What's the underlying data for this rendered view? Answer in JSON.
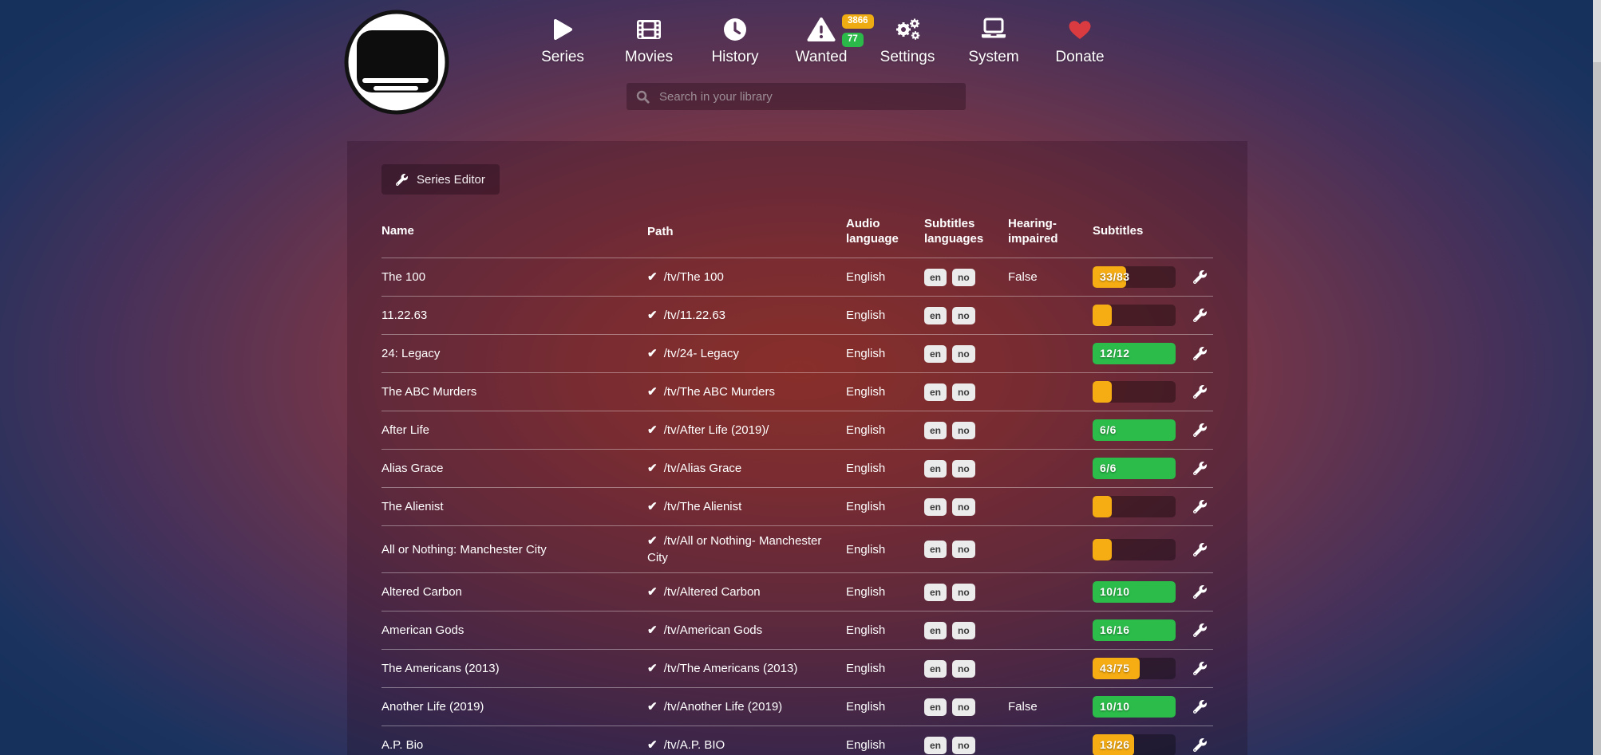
{
  "nav": {
    "items": [
      {
        "label": "Series",
        "icon": "play-icon"
      },
      {
        "label": "Movies",
        "icon": "film-icon"
      },
      {
        "label": "History",
        "icon": "clock-icon"
      },
      {
        "label": "Wanted",
        "icon": "warning-triangle-icon",
        "badges": [
          {
            "value": "3866",
            "color": "yellow"
          },
          {
            "value": "77",
            "color": "green"
          }
        ]
      },
      {
        "label": "Settings",
        "icon": "gears-icon"
      },
      {
        "label": "System",
        "icon": "laptop-icon"
      },
      {
        "label": "Donate",
        "icon": "heart-icon"
      }
    ]
  },
  "search": {
    "placeholder": "Search in your library",
    "value": ""
  },
  "toolbar": {
    "series_editor_label": "Series Editor",
    "series_editor_icon": "wrench-icon"
  },
  "table": {
    "columns": [
      "Name",
      "Path",
      "Audio language",
      "Subtitles languages",
      "Hearing-impaired",
      "Subtitles"
    ],
    "rows": [
      {
        "name": "The 100",
        "path": "/tv/The 100",
        "audio_language": "English",
        "subtitles_languages": [
          "en",
          "no"
        ],
        "hearing_impaired": "False",
        "subtitles": {
          "label": "33/83",
          "percent": 40,
          "color": "yellow"
        }
      },
      {
        "name": "11.22.63",
        "path": "/tv/11.22.63",
        "audio_language": "English",
        "subtitles_languages": [
          "en",
          "no"
        ],
        "hearing_impaired": "",
        "subtitles": {
          "label": "",
          "percent": 23,
          "color": "yellow"
        }
      },
      {
        "name": "24: Legacy",
        "path": "/tv/24- Legacy",
        "audio_language": "English",
        "subtitles_languages": [
          "en",
          "no"
        ],
        "hearing_impaired": "",
        "subtitles": {
          "label": "12/12",
          "percent": 100,
          "color": "green"
        }
      },
      {
        "name": "The ABC Murders",
        "path": "/tv/The ABC Murders",
        "audio_language": "English",
        "subtitles_languages": [
          "en",
          "no"
        ],
        "hearing_impaired": "",
        "subtitles": {
          "label": "",
          "percent": 23,
          "color": "yellow"
        }
      },
      {
        "name": "After Life",
        "path": "/tv/After Life (2019)/",
        "audio_language": "English",
        "subtitles_languages": [
          "en",
          "no"
        ],
        "hearing_impaired": "",
        "subtitles": {
          "label": "6/6",
          "percent": 100,
          "color": "green"
        }
      },
      {
        "name": "Alias Grace",
        "path": "/tv/Alias Grace",
        "audio_language": "English",
        "subtitles_languages": [
          "en",
          "no"
        ],
        "hearing_impaired": "",
        "subtitles": {
          "label": "6/6",
          "percent": 100,
          "color": "green"
        }
      },
      {
        "name": "The Alienist",
        "path": "/tv/The Alienist",
        "audio_language": "English",
        "subtitles_languages": [
          "en",
          "no"
        ],
        "hearing_impaired": "",
        "subtitles": {
          "label": "",
          "percent": 23,
          "color": "yellow"
        }
      },
      {
        "name": "All or Nothing: Manchester City",
        "path": "/tv/All or Nothing- Manchester City",
        "audio_language": "English",
        "subtitles_languages": [
          "en",
          "no"
        ],
        "hearing_impaired": "",
        "subtitles": {
          "label": "",
          "percent": 23,
          "color": "yellow"
        }
      },
      {
        "name": "Altered Carbon",
        "path": "/tv/Altered Carbon",
        "audio_language": "English",
        "subtitles_languages": [
          "en",
          "no"
        ],
        "hearing_impaired": "",
        "subtitles": {
          "label": "10/10",
          "percent": 100,
          "color": "green"
        }
      },
      {
        "name": "American Gods",
        "path": "/tv/American Gods",
        "audio_language": "English",
        "subtitles_languages": [
          "en",
          "no"
        ],
        "hearing_impaired": "",
        "subtitles": {
          "label": "16/16",
          "percent": 100,
          "color": "green"
        }
      },
      {
        "name": "The Americans (2013)",
        "path": "/tv/The Americans (2013)",
        "audio_language": "English",
        "subtitles_languages": [
          "en",
          "no"
        ],
        "hearing_impaired": "",
        "subtitles": {
          "label": "43/75",
          "percent": 57,
          "color": "yellow"
        }
      },
      {
        "name": "Another Life (2019)",
        "path": "/tv/Another Life (2019)",
        "audio_language": "English",
        "subtitles_languages": [
          "en",
          "no"
        ],
        "hearing_impaired": "False",
        "subtitles": {
          "label": "10/10",
          "percent": 100,
          "color": "green"
        }
      },
      {
        "name": "A.P. Bio",
        "path": "/tv/A.P. BIO",
        "audio_language": "English",
        "subtitles_languages": [
          "en",
          "no"
        ],
        "hearing_impaired": "",
        "subtitles": {
          "label": "13/26",
          "percent": 50,
          "color": "yellow"
        }
      }
    ]
  },
  "colors": {
    "yellow": "#f6ad13",
    "green": "#2bbc4a",
    "badge_yellow": "#eeac12",
    "badge_green": "#2bb94a",
    "heart_red": "#da3b40",
    "glow_red": "#a83c31",
    "navy": "#16315c"
  }
}
